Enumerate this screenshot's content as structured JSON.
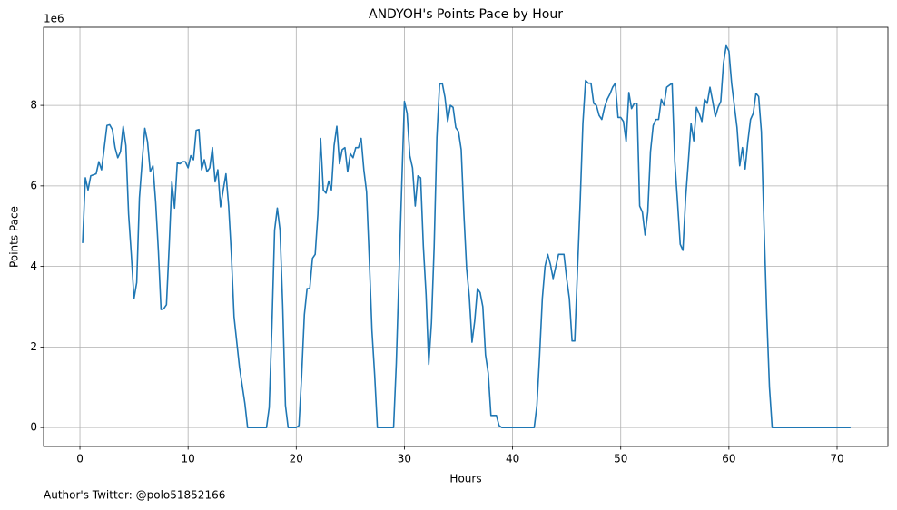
{
  "chart_data": {
    "type": "line",
    "title": "ANDYOH's Points Pace by Hour",
    "xlabel": "Hours",
    "ylabel": "Points Pace",
    "y_offset_label": "1e6",
    "footer": "Author's Twitter: @polo51852166",
    "grid": true,
    "xlim": [
      -3.36,
      74.7
    ],
    "ylim": [
      -0.47,
      9.94
    ],
    "xticks": [
      0,
      10,
      20,
      30,
      40,
      50,
      60,
      70
    ],
    "yticks": [
      0,
      2,
      4,
      6,
      8
    ],
    "x": [
      0.25,
      0.5,
      0.75,
      1.0,
      1.5,
      1.75,
      2.0,
      2.5,
      2.75,
      3.0,
      3.25,
      3.5,
      3.75,
      4.0,
      4.25,
      4.5,
      4.75,
      5.0,
      5.25,
      5.5,
      5.75,
      6.0,
      6.25,
      6.5,
      6.75,
      7.0,
      7.25,
      7.5,
      7.75,
      8.0,
      8.25,
      8.5,
      8.75,
      9.0,
      9.25,
      9.5,
      9.75,
      10.0,
      10.25,
      10.5,
      10.75,
      11.0,
      11.25,
      11.5,
      11.75,
      12.0,
      12.25,
      12.5,
      12.75,
      13.0,
      13.25,
      13.5,
      13.75,
      14.0,
      14.25,
      14.75,
      15.25,
      15.5,
      16.5,
      17.25,
      17.5,
      17.75,
      18.0,
      18.25,
      18.5,
      18.75,
      19.0,
      19.25,
      20.0,
      20.25,
      20.5,
      20.75,
      21.0,
      21.25,
      21.5,
      21.75,
      22.0,
      22.25,
      22.5,
      22.75,
      23.0,
      23.25,
      23.5,
      23.75,
      24.0,
      24.25,
      24.5,
      24.75,
      25.0,
      25.25,
      25.5,
      25.75,
      26.0,
      26.25,
      26.5,
      26.75,
      27.0,
      27.25,
      27.5,
      29.0,
      29.25,
      29.5,
      29.75,
      30.0,
      30.25,
      30.5,
      30.75,
      31.0,
      31.25,
      31.5,
      31.75,
      32.0,
      32.25,
      32.5,
      32.75,
      33.0,
      33.25,
      33.5,
      33.75,
      34.0,
      34.25,
      34.5,
      34.75,
      35.0,
      35.25,
      35.5,
      35.75,
      36.0,
      36.25,
      36.5,
      36.75,
      37.0,
      37.25,
      37.5,
      37.75,
      38.0,
      38.5,
      38.75,
      39.0,
      42.0,
      42.25,
      42.5,
      42.75,
      43.0,
      43.25,
      43.5,
      43.75,
      44.0,
      44.25,
      44.75,
      45.0,
      45.25,
      45.5,
      45.75,
      46.0,
      46.25,
      46.5,
      46.75,
      47.0,
      47.25,
      47.5,
      47.75,
      48.0,
      48.25,
      48.5,
      48.75,
      49.0,
      49.25,
      49.5,
      49.75,
      50.0,
      50.25,
      50.5,
      50.75,
      51.0,
      51.25,
      51.5,
      51.75,
      52.0,
      52.25,
      52.5,
      52.75,
      53.0,
      53.25,
      53.5,
      53.75,
      54.0,
      54.25,
      54.75,
      55.0,
      55.25,
      55.5,
      55.75,
      56.0,
      56.25,
      56.5,
      56.75,
      57.0,
      57.25,
      57.5,
      57.75,
      58.0,
      58.25,
      58.5,
      58.75,
      59.0,
      59.25,
      59.5,
      59.75,
      60.0,
      60.25,
      60.5,
      60.75,
      61.0,
      61.25,
      61.5,
      61.75,
      62.0,
      62.25,
      62.5,
      62.75,
      63.0,
      63.25,
      63.5,
      63.75,
      64.0,
      71.25
    ],
    "series": [
      {
        "name": "Points Pace",
        "color": "#1f77b4",
        "values": [
          4.58,
          6.2,
          5.9,
          6.25,
          6.3,
          6.6,
          6.4,
          7.5,
          7.52,
          7.4,
          6.95,
          6.7,
          6.85,
          7.48,
          7.0,
          5.3,
          4.3,
          3.2,
          3.6,
          5.7,
          6.6,
          7.43,
          7.1,
          6.35,
          6.5,
          5.6,
          4.4,
          2.93,
          2.95,
          3.05,
          4.5,
          6.1,
          5.45,
          6.57,
          6.55,
          6.6,
          6.6,
          6.45,
          6.75,
          6.65,
          7.38,
          7.4,
          6.4,
          6.65,
          6.35,
          6.45,
          6.95,
          6.1,
          6.4,
          5.48,
          5.9,
          6.3,
          5.5,
          4.3,
          2.75,
          1.5,
          0.6,
          0,
          0,
          0,
          0.5,
          2.5,
          4.9,
          5.45,
          4.9,
          3.0,
          0.55,
          0,
          0,
          0.05,
          1.3,
          2.8,
          3.45,
          3.45,
          4.2,
          4.3,
          5.3,
          7.18,
          5.9,
          5.82,
          6.12,
          5.9,
          7.0,
          7.48,
          6.55,
          6.9,
          6.95,
          6.35,
          6.8,
          6.7,
          6.95,
          6.95,
          7.18,
          6.4,
          5.85,
          4.2,
          2.4,
          1.3,
          0,
          0,
          1.6,
          3.8,
          6.0,
          8.1,
          7.8,
          6.75,
          6.45,
          5.5,
          6.25,
          6.2,
          4.5,
          3.3,
          1.57,
          2.6,
          4.5,
          7.2,
          8.52,
          8.55,
          8.2,
          7.6,
          8.0,
          7.95,
          7.45,
          7.35,
          6.9,
          5.3,
          3.95,
          3.25,
          2.12,
          2.65,
          3.45,
          3.35,
          3.0,
          1.8,
          1.35,
          0.3,
          0.3,
          0.05,
          0,
          0,
          0.55,
          1.8,
          3.2,
          4.0,
          4.3,
          4.05,
          3.7,
          4.0,
          4.3,
          4.3,
          3.7,
          3.2,
          2.15,
          2.15,
          3.9,
          5.6,
          7.55,
          8.62,
          8.55,
          8.55,
          8.05,
          8.0,
          7.75,
          7.65,
          7.95,
          8.15,
          8.28,
          8.45,
          8.55,
          7.7,
          7.7,
          7.6,
          7.1,
          8.32,
          7.92,
          8.05,
          8.05,
          5.5,
          5.35,
          4.78,
          5.35,
          6.85,
          7.5,
          7.65,
          7.65,
          8.15,
          8.0,
          8.45,
          8.55,
          6.6,
          5.6,
          4.55,
          4.4,
          5.7,
          6.6,
          7.55,
          7.12,
          7.95,
          7.8,
          7.6,
          8.15,
          8.05,
          8.45,
          8.1,
          7.72,
          7.95,
          8.1,
          9.05,
          9.48,
          9.35,
          8.55,
          8.0,
          7.45,
          6.5,
          6.95,
          6.42,
          7.1,
          7.65,
          7.8,
          8.3,
          8.22,
          7.35,
          5.0,
          2.8,
          1.0,
          0,
          0
        ]
      }
    ]
  }
}
